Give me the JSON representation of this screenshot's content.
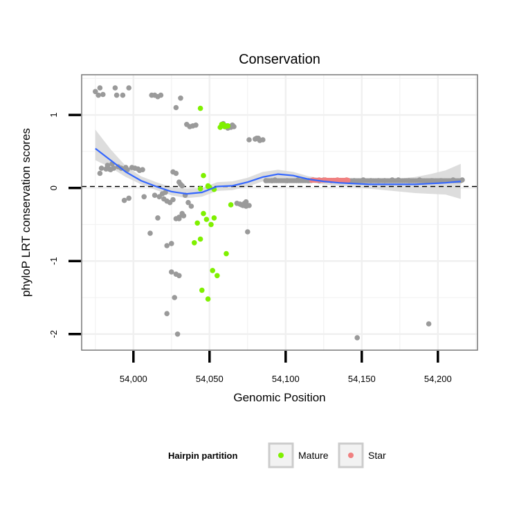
{
  "chart_data": {
    "type": "scatter",
    "title": "Conservation",
    "xlabel": "Genomic Position",
    "ylabel": "phyloP LRT conservation scores",
    "xlim": [
      53966,
      54226
    ],
    "ylim": [
      -2.22,
      1.55
    ],
    "x_ticks": [
      54000,
      54050,
      54100,
      54150,
      54200
    ],
    "x_tick_labels": [
      "54,000",
      "54,050",
      "54,100",
      "54,150",
      "54,200"
    ],
    "y_ticks": [
      -2,
      -1,
      0,
      1
    ],
    "y_tick_labels": [
      "-2",
      "-1",
      "0",
      "1"
    ],
    "reference_line": {
      "y": 0.02,
      "style": "dashed"
    },
    "colors": {
      "other": "#9a9a9a",
      "mature": "#7ff000",
      "star": "#f08080",
      "smooth": "#3366ff",
      "ribbon": "#d9d9d9",
      "panel_border": "#777777",
      "grid": "#f0f0f0"
    },
    "legend": {
      "title": "Hairpin partition",
      "position": "bottom",
      "entries": [
        {
          "label": "Mature",
          "color": "#7ff000"
        },
        {
          "label": "Star",
          "color": "#f08080"
        }
      ]
    },
    "series": [
      {
        "name": "Other",
        "x": [
          53978,
          53977,
          53980,
          53975,
          53978,
          53985,
          53979,
          53982,
          53986,
          53983,
          53990,
          53987,
          53984,
          53992,
          53995,
          53989,
          53997,
          53993,
          53999,
          54001,
          54003,
          53996,
          54004,
          54006,
          53988,
          54012,
          54014,
          54016,
          54018,
          53994,
          53997,
          54007,
          54014,
          54017,
          54020,
          54022,
          54024,
          54026,
          54019,
          54021,
          54016,
          54011,
          54026,
          54028,
          54030,
          54031,
          54032,
          54034,
          54036,
          54038,
          54028,
          54031,
          54033,
          54030,
          54028,
          54025,
          54022,
          54022,
          54027,
          54028,
          54030,
          54025,
          54029,
          54032,
          54030,
          54035,
          54037,
          54039,
          54041,
          54059,
          54061,
          54063,
          54065,
          54060,
          54062,
          54064,
          54066,
          54070,
          54072,
          54074,
          54068,
          54071,
          54075,
          54076,
          54080,
          54081,
          54083,
          54085,
          54082,
          54074,
          54073,
          54076,
          54087,
          54091,
          54093,
          54101,
          54108,
          54115,
          54122,
          54125,
          54145,
          54151,
          54156,
          54161,
          54165,
          54170,
          54174,
          54181,
          54188,
          54196,
          54202,
          54210,
          54216,
          54147,
          54194
        ],
        "y": [
          1.37,
          1.27,
          1.28,
          1.32,
          0.2,
          0.25,
          0.27,
          0.26,
          0.33,
          0.31,
          0.29,
          0.27,
          0.26,
          0.27,
          0.28,
          1.27,
          1.37,
          1.27,
          0.28,
          0.27,
          0.26,
          0.25,
          0.24,
          0.25,
          1.37,
          1.27,
          1.27,
          1.25,
          1.27,
          -0.17,
          -0.14,
          -0.12,
          -0.1,
          -0.12,
          -0.15,
          -0.18,
          -0.2,
          -0.16,
          -0.08,
          -0.06,
          -0.41,
          -0.62,
          0.22,
          0.2,
          0.08,
          0.05,
          0.03,
          -0.1,
          -0.2,
          -0.25,
          1.1,
          1.23,
          -0.38,
          -0.4,
          -0.42,
          -0.76,
          -0.79,
          -1.72,
          -1.5,
          -1.18,
          -1.2,
          -1.15,
          -2.0,
          -0.35,
          -0.42,
          0.87,
          0.84,
          0.85,
          0.86,
          0.88,
          0.85,
          0.84,
          0.86,
          0.84,
          0.82,
          0.83,
          0.84,
          -0.22,
          -0.24,
          -0.25,
          -0.21,
          -0.23,
          -0.6,
          0.66,
          0.67,
          0.68,
          0.65,
          0.66,
          0.68,
          -0.19,
          -0.21,
          -0.24,
          0.1,
          0.1,
          0.11,
          0.1,
          0.11,
          0.1,
          0.1,
          0.11,
          0.1,
          0.11,
          0.1,
          0.1,
          0.1,
          0.11,
          0.11,
          0.1,
          0.11,
          0.1,
          0.1,
          0.11,
          0.11,
          -2.05,
          -1.86
        ]
      },
      {
        "name": "Mature",
        "x": [
          54044,
          54046,
          54049,
          54050,
          54053,
          54042,
          54046,
          54044,
          54048,
          54040,
          54045,
          54049,
          54052,
          54055,
          54061,
          54064,
          54044,
          54049,
          54051,
          54053,
          54058,
          54060,
          54062,
          54057,
          54059,
          54062
        ],
        "y": [
          1.09,
          0.17,
          0.03,
          0.01,
          -0.41,
          -0.48,
          -0.35,
          -0.7,
          -0.43,
          -0.75,
          -1.4,
          -1.52,
          -1.13,
          -1.2,
          -0.9,
          -0.23,
          -0.01,
          0.02,
          -0.5,
          -0.02,
          0.87,
          0.84,
          0.85,
          0.83,
          0.87,
          0.85
        ]
      },
      {
        "name": "Star",
        "x": [
          54118,
          54122,
          54126,
          54130,
          54134,
          54138,
          54140
        ],
        "y": [
          0.11,
          0.11,
          0.11,
          0.1,
          0.11,
          0.1,
          0.11
        ]
      }
    ],
    "smooth_line": {
      "x": [
        53975,
        53985,
        53995,
        54005,
        54015,
        54025,
        54035,
        54045,
        54055,
        54065,
        54075,
        54085,
        54095,
        54105,
        54115,
        54125,
        54135,
        54145,
        54155,
        54165,
        54175,
        54185,
        54195,
        54205,
        54215
      ],
      "y": [
        0.54,
        0.38,
        0.22,
        0.1,
        0.02,
        -0.05,
        -0.08,
        -0.06,
        0.02,
        0.03,
        0.08,
        0.15,
        0.19,
        0.17,
        0.12,
        0.09,
        0.07,
        0.06,
        0.05,
        0.05,
        0.05,
        0.05,
        0.06,
        0.07,
        0.09
      ],
      "lower": [
        0.38,
        0.28,
        0.15,
        0.05,
        -0.03,
        -0.1,
        -0.14,
        -0.12,
        -0.04,
        -0.03,
        0.02,
        0.09,
        0.13,
        0.12,
        0.08,
        0.05,
        0.03,
        0.01,
        -0.01,
        -0.03,
        -0.05,
        -0.07,
        -0.08,
        -0.09,
        -0.15
      ],
      "upper": [
        0.8,
        0.53,
        0.3,
        0.16,
        0.08,
        0.01,
        -0.01,
        0.0,
        0.08,
        0.09,
        0.14,
        0.22,
        0.25,
        0.22,
        0.16,
        0.13,
        0.12,
        0.11,
        0.11,
        0.12,
        0.13,
        0.15,
        0.19,
        0.24,
        0.33
      ]
    }
  }
}
